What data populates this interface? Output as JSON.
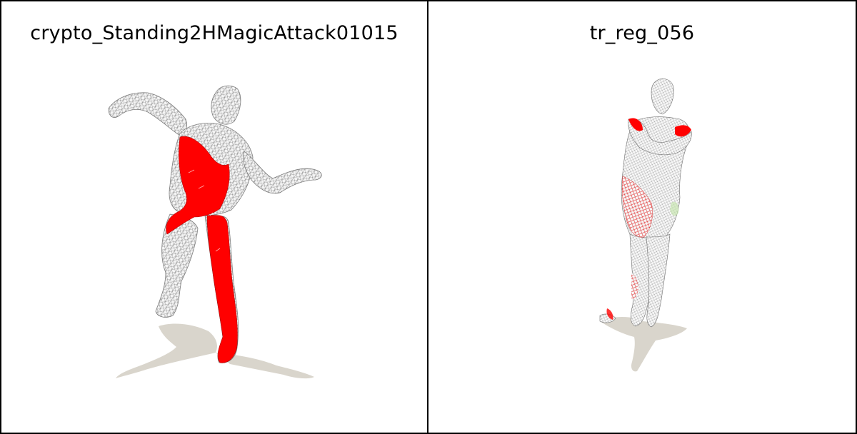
{
  "panels": [
    {
      "title": "crypto_Standing2HMagicAttack01015",
      "figure": "wireframe-mesh-left",
      "highlight_color": "#ff0000",
      "mesh_color": "#e6e6e6",
      "shadow_color": "#d9d5cc"
    },
    {
      "title": "tr_reg_056",
      "figure": "wireframe-mesh-right",
      "highlight_color": "#ff0000",
      "mesh_color": "#e6e6e6",
      "shadow_color": "#d9d5cc"
    }
  ]
}
